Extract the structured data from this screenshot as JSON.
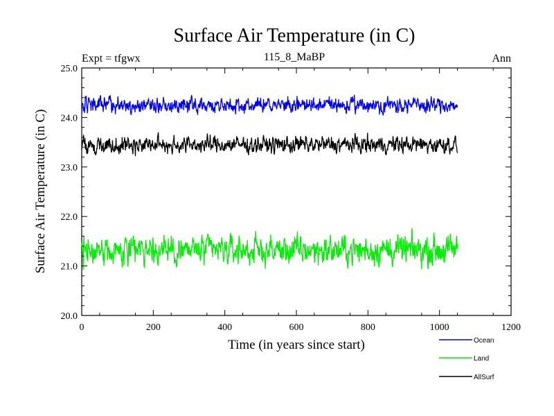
{
  "chart_data": {
    "type": "line",
    "title": "Surface Air Temperature (in C)",
    "subtitle": "115_8_MaBP",
    "left_label": "Expt = tfgwx",
    "right_label": "Ann",
    "xlabel": "Time (in years since start)",
    "ylabel": "Surface Air Temperature (in C)",
    "xlim": [
      0,
      1200
    ],
    "ylim": [
      20.0,
      25.0
    ],
    "x_ticks": [
      0,
      200,
      400,
      600,
      800,
      1000,
      1200
    ],
    "x_tick_labels": [
      "0",
      "200",
      "400",
      "600",
      "800",
      "1000",
      "1200"
    ],
    "y_ticks": [
      20.0,
      21.0,
      22.0,
      23.0,
      24.0,
      25.0
    ],
    "y_tick_labels": [
      "20.0",
      "21.0",
      "22.0",
      "23.0",
      "24.0",
      "25.0"
    ],
    "x_range_years": [
      0,
      1050
    ],
    "series": [
      {
        "name": "Ocean",
        "color": "#0000ff",
        "mean": 24.25,
        "spread": 0.09,
        "min": 24.05,
        "max": 24.46
      },
      {
        "name": "Land",
        "color": "#00ee00",
        "mean": 21.32,
        "spread": 0.17,
        "min": 20.85,
        "max": 21.78
      },
      {
        "name": "AllSurf",
        "color": "#000000",
        "mean": 23.45,
        "spread": 0.1,
        "min": 23.2,
        "max": 23.7
      }
    ]
  }
}
